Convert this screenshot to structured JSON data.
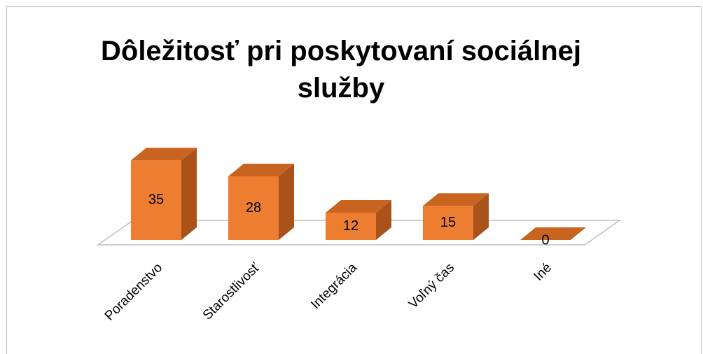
{
  "chart_data": {
    "type": "bar3d",
    "title": "Dôležitosť pri poskytovaní sociálnej služby",
    "categories": [
      "Poradenstvo",
      "Starostlivosť",
      "Integrácia",
      "Voľný čas",
      "Iné"
    ],
    "values": [
      35,
      28,
      12,
      15,
      0
    ],
    "color": "#ED7D31"
  }
}
